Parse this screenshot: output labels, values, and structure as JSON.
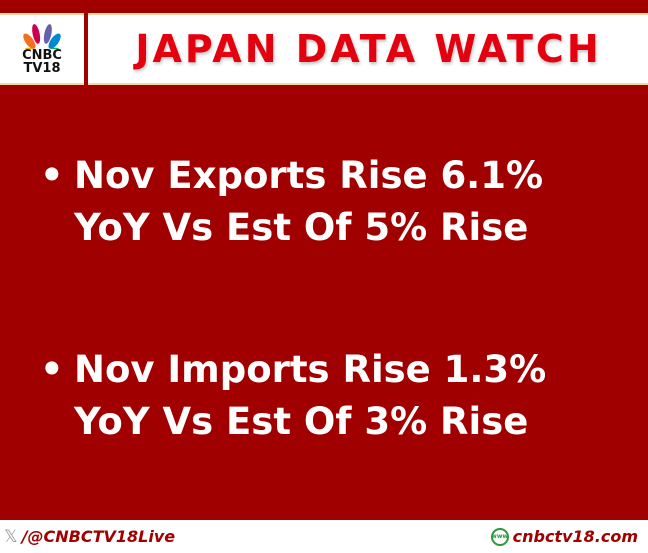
{
  "header": {
    "logo_line1": "CNBC",
    "logo_line2": "TV18",
    "title": "JAPAN DATA WATCH"
  },
  "bullets": [
    {
      "line1": "Nov Exports Rise 6.1%",
      "line2": "YoY Vs Est Of 5% Rise"
    },
    {
      "line1": "Nov Imports Rise 1.3%",
      "line2": "YoY Vs Est Of 3% Rise"
    }
  ],
  "footer": {
    "handle": "/@CNBCTV18Live",
    "website": "cnbctv18.com",
    "www_label": "www"
  },
  "colors": {
    "red": "#a00000",
    "title_red": "#e3000f"
  }
}
